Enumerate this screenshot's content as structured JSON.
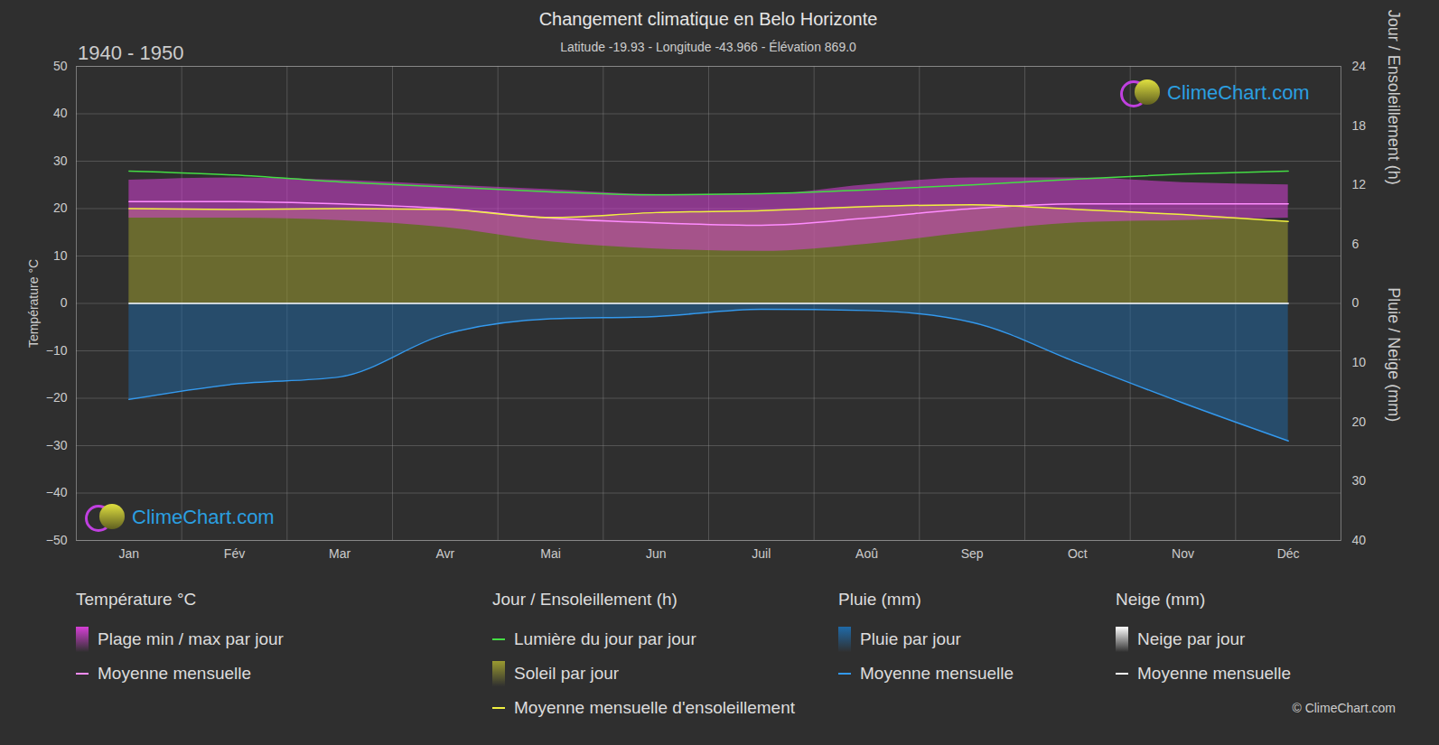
{
  "chart_data": {
    "type": "line",
    "title": "Changement climatique en Belo Horizonte",
    "subtitle": "Latitude -19.93 - Longitude -43.966 - Élévation 869.0",
    "period": "1940 - 1950",
    "watermark": "ClimeChart.com",
    "copyright": "© ClimeChart.com",
    "categories": [
      "Jan",
      "Fév",
      "Mar",
      "Avr",
      "Mai",
      "Jun",
      "Juil",
      "Aoû",
      "Sep",
      "Oct",
      "Nov",
      "Déc"
    ],
    "ylabel": "Température °C",
    "ylim": [
      -50,
      50
    ],
    "yticks": [
      -50,
      -40,
      -30,
      -20,
      -10,
      0,
      10,
      20,
      30,
      40,
      50
    ],
    "y2label": "Jour / Ensoleillement (h)",
    "y2lim": [
      0,
      24
    ],
    "y2ticks": [
      0,
      6,
      12,
      18,
      24
    ],
    "y3label": "Pluie / Neige (mm)",
    "y3lim": [
      0,
      40
    ],
    "y3ticks": [
      0,
      10,
      20,
      30,
      40
    ],
    "grid": true,
    "series": [
      {
        "name": "Plage min / max par jour",
        "group": "Température °C",
        "type": "band",
        "axis": "y",
        "color": "#d63fd6",
        "min": [
          18,
          18,
          17.5,
          16,
          13,
          11.5,
          11,
          12.5,
          15,
          17,
          17.5,
          18
        ],
        "max": [
          26,
          26.5,
          26,
          25,
          24,
          23,
          23,
          25,
          26.5,
          26.5,
          25.5,
          25
        ]
      },
      {
        "name": "Moyenne mensuelle",
        "group": "Température °C",
        "type": "line",
        "axis": "y",
        "color": "#ff8cff",
        "values": [
          21.5,
          21.5,
          21,
          20,
          18,
          17,
          16.5,
          18,
          20,
          21,
          21,
          21
        ]
      },
      {
        "name": "Lumière du jour par jour",
        "group": "Jour / Ensoleillement (h)",
        "type": "line",
        "axis": "y2",
        "color": "#44dd44",
        "values": [
          13.4,
          13.0,
          12.3,
          11.8,
          11.3,
          11.0,
          11.1,
          11.5,
          12.0,
          12.6,
          13.1,
          13.4
        ]
      },
      {
        "name": "Soleil par jour",
        "group": "Jour / Ensoleillement (h)",
        "type": "area",
        "axis": "y2",
        "color": "#9a9a30",
        "values": [
          9.6,
          9.5,
          9.6,
          9.5,
          8.7,
          9.2,
          9.4,
          9.8,
          10.0,
          9.5,
          9.0,
          8.3
        ]
      },
      {
        "name": "Moyenne mensuelle d'ensoleillement",
        "group": "Jour / Ensoleillement (h)",
        "type": "line",
        "axis": "y2",
        "color": "#f0f040",
        "values": [
          9.6,
          9.5,
          9.6,
          9.5,
          8.7,
          9.2,
          9.4,
          9.8,
          10.0,
          9.5,
          9.0,
          8.3
        ]
      },
      {
        "name": "Pluie par jour",
        "group": "Pluie (mm)",
        "type": "area",
        "axis": "y3",
        "color": "#1f6aa8",
        "values": [
          16.2,
          13.6,
          12.4,
          5.2,
          2.6,
          2.2,
          1.0,
          1.2,
          3.2,
          10.0,
          16.8,
          23.2
        ]
      },
      {
        "name": "Moyenne mensuelle",
        "group": "Pluie (mm)",
        "type": "line",
        "axis": "y3",
        "color": "#3399ee",
        "values": [
          16.2,
          13.6,
          12.4,
          5.2,
          2.6,
          2.2,
          1.0,
          1.2,
          3.2,
          10.0,
          16.8,
          23.2
        ]
      },
      {
        "name": "Neige par jour",
        "group": "Neige (mm)",
        "type": "area",
        "axis": "y3",
        "color": "#ffffff",
        "values": [
          0,
          0,
          0,
          0,
          0,
          0,
          0,
          0,
          0,
          0,
          0,
          0
        ]
      },
      {
        "name": "Moyenne mensuelle",
        "group": "Neige (mm)",
        "type": "line",
        "axis": "y3",
        "color": "#ffffff",
        "values": [
          0,
          0,
          0,
          0,
          0,
          0,
          0,
          0,
          0,
          0,
          0,
          0
        ]
      }
    ]
  }
}
